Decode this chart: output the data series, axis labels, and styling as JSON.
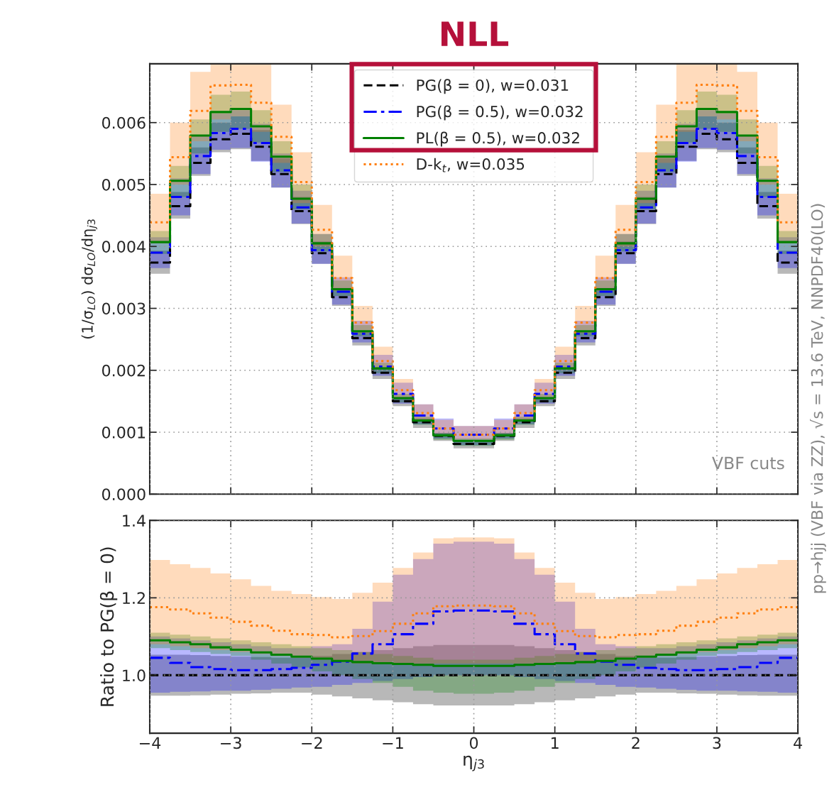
{
  "chart_data": [
    {
      "type": "step",
      "title": "NLL",
      "ylabel": "(1/σ$_{LO}$) dσ$_{LO}$/dη$_{j3}$",
      "legend": "top center",
      "grid": true,
      "tick_labels": "y",
      "annotations": [
        "VBF cuts",
        "pp→hjj (VBF via ZZ), √s = 13.6 TeV, NNPDF40(LO)"
      ],
      "xlim": [
        -4,
        4
      ],
      "xticks": [
        {
          "value": -4,
          "label": null
        },
        {
          "value": -3,
          "label": null
        },
        {
          "value": -2,
          "label": null
        },
        {
          "value": -1,
          "label": null
        },
        {
          "value": 0,
          "label": null
        },
        {
          "value": 1,
          "label": null
        },
        {
          "value": 2,
          "label": null
        },
        {
          "value": 3,
          "label": null
        },
        {
          "value": 4,
          "label": null
        }
      ],
      "ylim": [
        0,
        0.00695
      ],
      "yticks": [
        {
          "value": 0,
          "label": "0.000"
        },
        {
          "value": 0.001,
          "label": "0.001"
        },
        {
          "value": 0.002,
          "label": "0.002"
        },
        {
          "value": 0.003,
          "label": "0.003"
        },
        {
          "value": 0.004,
          "label": "0.004"
        },
        {
          "value": 0.005,
          "label": "0.005"
        },
        {
          "value": 0.006,
          "label": "0.006"
        }
      ],
      "x": [
        -4,
        -3.75,
        -3.5,
        -3.25,
        -3,
        -2.75,
        -2.5,
        -2.25,
        -2,
        -1.75,
        -1.5,
        -1.25,
        -1,
        -0.75,
        -0.5,
        -0.25,
        0,
        0.25,
        0.5,
        0.75,
        1,
        1.25,
        1.5,
        1.75,
        2,
        2.25,
        2.5,
        2.75,
        3,
        3.25,
        3.5,
        3.75,
        4
      ],
      "series": [
        {
          "name": "PG(β = 0), w=0.031",
          "color": "#000000",
          "line_style": "dashed",
          "values": [
            0.00374,
            0.00465,
            0.00535,
            0.00573,
            0.00582,
            0.00561,
            0.00517,
            0.00457,
            0.00389,
            0.00318,
            0.00252,
            0.00196,
            0.0015,
            0.00116,
            0.00094,
            0.00081,
            0.00081,
            0.00094,
            0.00116,
            0.0015,
            0.00196,
            0.00252,
            0.00318,
            0.00389,
            0.00457,
            0.00517,
            0.00561,
            0.00582,
            0.00573,
            0.00535,
            0.00465,
            0.00374,
            0.00374
          ],
          "lower": [
            0.00356,
            0.00445,
            0.00514,
            0.00552,
            0.00557,
            0.00538,
            0.00495,
            0.00436,
            0.00372,
            0.00304,
            0.0024,
            0.00186,
            0.00142,
            0.00107,
            0.00086,
            0.00074,
            0.00074,
            0.00086,
            0.00107,
            0.00142,
            0.00186,
            0.0024,
            0.00304,
            0.00372,
            0.00436,
            0.00495,
            0.00538,
            0.00557,
            0.00552,
            0.00514,
            0.00445,
            0.00356,
            0.00356
          ],
          "upper": [
            0.00393,
            0.00488,
            0.0056,
            0.006,
            0.0061,
            0.00588,
            0.00542,
            0.0048,
            0.00408,
            0.00333,
            0.00264,
            0.00205,
            0.00157,
            0.00122,
            0.00099,
            0.00086,
            0.00086,
            0.00099,
            0.00122,
            0.00157,
            0.00205,
            0.00264,
            0.00333,
            0.00408,
            0.0048,
            0.00542,
            0.00588,
            0.0061,
            0.006,
            0.0056,
            0.00488,
            0.00393,
            0.00393
          ]
        },
        {
          "name": "PG(β = 0.5), w=0.032",
          "color": "#0000ff",
          "line_style": "dashdot",
          "values": [
            0.0039,
            0.0048,
            0.00546,
            0.00583,
            0.0059,
            0.00567,
            0.00523,
            0.00463,
            0.00394,
            0.00327,
            0.00259,
            0.00206,
            0.00162,
            0.00127,
            0.00106,
            0.00096,
            0.00096,
            0.00106,
            0.00127,
            0.00162,
            0.00206,
            0.00259,
            0.00327,
            0.00394,
            0.00463,
            0.00523,
            0.00567,
            0.0059,
            0.00583,
            0.00546,
            0.0048,
            0.0039,
            0.0039
          ],
          "lower": [
            0.00365,
            0.0045,
            0.00517,
            0.00556,
            0.00559,
            0.00537,
            0.00495,
            0.00437,
            0.00372,
            0.00306,
            0.00245,
            0.00191,
            0.00146,
            0.00113,
            0.0009,
            0.00079,
            0.00079,
            0.0009,
            0.00113,
            0.00146,
            0.00191,
            0.00245,
            0.00306,
            0.00372,
            0.00437,
            0.00495,
            0.00537,
            0.00559,
            0.00556,
            0.00517,
            0.0045,
            0.00365,
            0.00365
          ],
          "upper": [
            0.00415,
            0.0051,
            0.0058,
            0.00615,
            0.0062,
            0.00598,
            0.0055,
            0.0049,
            0.0042,
            0.0035,
            0.0028,
            0.00225,
            0.0018,
            0.00145,
            0.00122,
            0.0011,
            0.0011,
            0.00122,
            0.00145,
            0.0018,
            0.00225,
            0.0028,
            0.0035,
            0.0042,
            0.0049,
            0.0055,
            0.00598,
            0.0062,
            0.00615,
            0.0058,
            0.0051,
            0.00415,
            0.00415
          ]
        },
        {
          "name": "PL(β = 0.5), w=0.032",
          "color": "#008000",
          "line_style": "solid",
          "values": [
            0.00407,
            0.00506,
            0.00579,
            0.00617,
            0.00622,
            0.00594,
            0.00545,
            0.00477,
            0.00405,
            0.00331,
            0.00263,
            0.00203,
            0.00155,
            0.00119,
            0.00095,
            0.00086,
            0.00086,
            0.00095,
            0.00119,
            0.00155,
            0.00203,
            0.00263,
            0.00331,
            0.00405,
            0.00477,
            0.00545,
            0.00594,
            0.00622,
            0.00617,
            0.00579,
            0.00506,
            0.00407,
            0.00407
          ],
          "lower": [
            0.00388,
            0.0048,
            0.0055,
            0.00585,
            0.0059,
            0.00568,
            0.0052,
            0.0046,
            0.00392,
            0.0032,
            0.00255,
            0.00195,
            0.00148,
            0.00112,
            0.00088,
            0.00078,
            0.00078,
            0.00088,
            0.00112,
            0.00148,
            0.00195,
            0.00255,
            0.0032,
            0.00392,
            0.0046,
            0.0052,
            0.00568,
            0.0059,
            0.00585,
            0.0055,
            0.0048,
            0.00388,
            0.00388
          ],
          "upper": [
            0.00425,
            0.0053,
            0.00605,
            0.00645,
            0.0065,
            0.0062,
            0.0057,
            0.005,
            0.0042,
            0.00345,
            0.00273,
            0.00212,
            0.00162,
            0.00125,
            0.00099,
            0.0009,
            0.0009,
            0.00099,
            0.00125,
            0.00162,
            0.00212,
            0.00273,
            0.00345,
            0.0042,
            0.005,
            0.0057,
            0.0062,
            0.0065,
            0.00645,
            0.00605,
            0.0053,
            0.00425,
            0.00425
          ]
        },
        {
          "name": "D-k$_{t}$, w=0.035",
          "color": "#ff7f0e",
          "line_style": "dotted",
          "values": [
            0.00439,
            0.00544,
            0.00619,
            0.0066,
            0.00661,
            0.00632,
            0.00577,
            0.00504,
            0.00427,
            0.00349,
            0.00277,
            0.00215,
            0.00168,
            0.00131,
            0.00106,
            0.00096,
            0.00096,
            0.00106,
            0.00131,
            0.00168,
            0.00215,
            0.00277,
            0.00349,
            0.00427,
            0.00504,
            0.00577,
            0.00632,
            0.00661,
            0.0066,
            0.00619,
            0.00544,
            0.00439,
            0.00439
          ],
          "lower": [
            0.00405,
            0.005,
            0.0057,
            0.00605,
            0.0061,
            0.00585,
            0.00535,
            0.0047,
            0.004,
            0.00328,
            0.0026,
            0.00202,
            0.00156,
            0.0012,
            0.00098,
            0.00088,
            0.00088,
            0.00098,
            0.0012,
            0.00156,
            0.00202,
            0.0026,
            0.00328,
            0.004,
            0.0047,
            0.00535,
            0.00585,
            0.0061,
            0.00605,
            0.0057,
            0.005,
            0.00405,
            0.00405
          ],
          "upper": [
            0.00485,
            0.006,
            0.00682,
            0.00695,
            0.00695,
            0.00695,
            0.00629,
            0.00552,
            0.00467,
            0.00385,
            0.00304,
            0.00238,
            0.00186,
            0.00145,
            0.0012,
            0.0011,
            0.0011,
            0.0012,
            0.00145,
            0.00186,
            0.00238,
            0.00304,
            0.00385,
            0.00467,
            0.00552,
            0.00629,
            0.00695,
            0.00695,
            0.00695,
            0.00682,
            0.006,
            0.00485,
            0.00485
          ]
        }
      ]
    },
    {
      "type": "step",
      "xlabel": "η$_{j3}$",
      "ylabel": "Ratio to PG(β = 0)",
      "grid": true,
      "xlim": [
        -4,
        4
      ],
      "xticks": [
        {
          "value": -4,
          "label": "−4"
        },
        {
          "value": -3,
          "label": "−3"
        },
        {
          "value": -2,
          "label": "−2"
        },
        {
          "value": -1,
          "label": "−1"
        },
        0,
        1,
        2,
        3,
        4
      ],
      "ylim": [
        0.85,
        1.4
      ],
      "yticks": [
        {
          "value": 1.0,
          "label": "1.0"
        },
        {
          "value": 1.2,
          "label": "1.2"
        },
        {
          "value": 1.4,
          "label": "1.4"
        }
      ],
      "x": [
        -4,
        -3.75,
        -3.5,
        -3.25,
        -3,
        -2.75,
        -2.5,
        -2.25,
        -2,
        -1.75,
        -1.5,
        -1.25,
        -1,
        -0.75,
        -0.5,
        -0.25,
        0,
        0.25,
        0.5,
        0.75,
        1,
        1.25,
        1.5,
        1.75,
        2,
        2.25,
        2.5,
        2.75,
        3,
        3.25,
        3.5,
        3.75,
        4
      ],
      "series": [
        {
          "color": "#000000",
          "line_style": "dashed",
          "values": [
            1,
            1,
            1,
            1,
            1,
            1,
            1,
            1,
            1,
            1,
            1,
            1,
            1,
            1,
            1,
            1,
            1,
            1,
            1,
            1,
            1,
            1,
            1,
            1,
            1,
            1,
            1,
            1,
            1,
            1,
            1,
            1,
            1
          ],
          "lower": [
            0.947,
            0.947,
            0.948,
            0.95,
            0.952,
            0.953,
            0.955,
            0.955,
            0.95,
            0.945,
            0.94,
            0.935,
            0.93,
            0.925,
            0.922,
            0.922,
            0.922,
            0.922,
            0.925,
            0.93,
            0.935,
            0.94,
            0.945,
            0.95,
            0.955,
            0.955,
            0.953,
            0.952,
            0.95,
            0.948,
            0.947,
            0.947,
            0.947
          ],
          "upper": [
            1.053,
            1.053,
            1.052,
            1.05,
            1.048,
            1.047,
            1.045,
            1.045,
            1.05,
            1.055,
            1.06,
            1.065,
            1.07,
            1.075,
            1.078,
            1.078,
            1.078,
            1.078,
            1.075,
            1.07,
            1.065,
            1.06,
            1.055,
            1.05,
            1.045,
            1.045,
            1.047,
            1.048,
            1.05,
            1.052,
            1.053,
            1.053,
            1.053
          ]
        },
        {
          "color": "#0000ff",
          "line_style": "dashdot",
          "values": [
            1.045,
            1.032,
            1.021,
            1.016,
            1.013,
            1.013,
            1.016,
            1.019,
            1.027,
            1.035,
            1.056,
            1.08,
            1.106,
            1.133,
            1.165,
            1.167,
            1.167,
            1.165,
            1.133,
            1.106,
            1.08,
            1.056,
            1.035,
            1.027,
            1.019,
            1.016,
            1.013,
            1.013,
            1.016,
            1.021,
            1.032,
            1.045,
            1.045
          ],
          "lower": [
            0.955,
            0.957,
            0.958,
            0.96,
            0.96,
            0.962,
            0.965,
            0.968,
            0.97,
            0.975,
            0.98,
            0.985,
            0.99,
            0.995,
            1.0,
            1.0,
            1.0,
            1.0,
            0.995,
            0.99,
            0.985,
            0.98,
            0.975,
            0.97,
            0.968,
            0.965,
            0.962,
            0.96,
            0.96,
            0.958,
            0.957,
            0.955,
            0.955
          ],
          "upper": [
            1.1,
            1.095,
            1.09,
            1.085,
            1.08,
            1.075,
            1.07,
            1.07,
            1.075,
            1.08,
            1.12,
            1.19,
            1.26,
            1.3,
            1.34,
            1.345,
            1.345,
            1.34,
            1.3,
            1.26,
            1.19,
            1.12,
            1.08,
            1.075,
            1.07,
            1.07,
            1.075,
            1.08,
            1.085,
            1.09,
            1.095,
            1.1,
            1.1
          ]
        },
        {
          "color": "#008000",
          "line_style": "solid",
          "values": [
            1.09,
            1.085,
            1.08,
            1.072,
            1.066,
            1.059,
            1.053,
            1.048,
            1.043,
            1.037,
            1.034,
            1.031,
            1.029,
            1.027,
            1.024,
            1.024,
            1.024,
            1.024,
            1.027,
            1.029,
            1.031,
            1.034,
            1.037,
            1.043,
            1.048,
            1.053,
            1.059,
            1.066,
            1.072,
            1.08,
            1.085,
            1.09,
            1.09
          ],
          "lower": [
            1.07,
            1.065,
            1.06,
            1.055,
            1.05,
            1.04,
            1.03,
            1.02,
            1.01,
            1.0,
            0.99,
            0.98,
            0.97,
            0.96,
            0.955,
            0.952,
            0.952,
            0.955,
            0.96,
            0.97,
            0.98,
            0.99,
            1.0,
            1.01,
            1.02,
            1.03,
            1.04,
            1.05,
            1.055,
            1.06,
            1.065,
            1.07,
            1.07
          ],
          "upper": [
            1.11,
            1.105,
            1.1,
            1.095,
            1.09,
            1.085,
            1.08,
            1.075,
            1.07,
            1.065,
            1.06,
            1.055,
            1.05,
            1.045,
            1.04,
            1.04,
            1.04,
            1.04,
            1.045,
            1.05,
            1.055,
            1.06,
            1.065,
            1.07,
            1.075,
            1.08,
            1.085,
            1.09,
            1.095,
            1.1,
            1.105,
            1.11,
            1.11
          ]
        },
        {
          "color": "#ff7f0e",
          "line_style": "dotted",
          "values": [
            1.176,
            1.17,
            1.16,
            1.149,
            1.138,
            1.128,
            1.115,
            1.106,
            1.104,
            1.098,
            1.101,
            1.114,
            1.133,
            1.16,
            1.178,
            1.18,
            1.18,
            1.178,
            1.16,
            1.133,
            1.114,
            1.101,
            1.098,
            1.104,
            1.106,
            1.115,
            1.128,
            1.138,
            1.149,
            1.16,
            1.17,
            1.176,
            1.176
          ],
          "lower": [
            1.08,
            1.075,
            1.07,
            1.065,
            1.06,
            1.055,
            1.05,
            1.045,
            1.04,
            1.035,
            1.03,
            1.03,
            1.03,
            1.03,
            1.03,
            1.03,
            1.03,
            1.03,
            1.03,
            1.03,
            1.03,
            1.03,
            1.035,
            1.04,
            1.045,
            1.05,
            1.055,
            1.06,
            1.065,
            1.07,
            1.075,
            1.08,
            1.08
          ],
          "upper": [
            1.298,
            1.287,
            1.277,
            1.263,
            1.248,
            1.231,
            1.218,
            1.21,
            1.202,
            1.197,
            1.213,
            1.239,
            1.277,
            1.317,
            1.354,
            1.356,
            1.356,
            1.354,
            1.317,
            1.277,
            1.239,
            1.213,
            1.197,
            1.202,
            1.21,
            1.218,
            1.231,
            1.248,
            1.263,
            1.277,
            1.287,
            1.298,
            1.298
          ]
        }
      ]
    }
  ]
}
